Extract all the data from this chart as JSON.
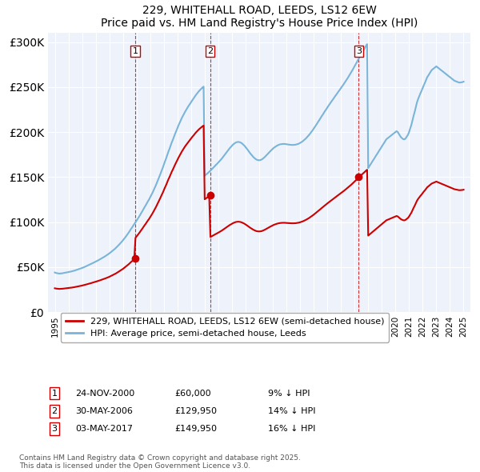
{
  "title": "229, WHITEHALL ROAD, LEEDS, LS12 6EW",
  "subtitle": "Price paid vs. HM Land Registry's House Price Index (HPI)",
  "legend_label_red": "229, WHITEHALL ROAD, LEEDS, LS12 6EW (semi-detached house)",
  "legend_label_blue": "HPI: Average price, semi-detached house, Leeds",
  "footer": "Contains HM Land Registry data © Crown copyright and database right 2025.\nThis data is licensed under the Open Government Licence v3.0.",
  "transactions": [
    {
      "num": 1,
      "date": "24-NOV-2000",
      "price": 60000,
      "hpi_diff": "9% ↓ HPI"
    },
    {
      "num": 2,
      "date": "30-MAY-2006",
      "price": 129950,
      "hpi_diff": "14% ↓ HPI"
    },
    {
      "num": 3,
      "date": "03-MAY-2017",
      "price": 149950,
      "hpi_diff": "16% ↓ HPI"
    }
  ],
  "transaction_years": [
    2000.9,
    2006.4,
    2017.3
  ],
  "transaction_prices": [
    60000,
    129950,
    149950
  ],
  "ylim": [
    0,
    310000
  ],
  "yticks": [
    0,
    50000,
    100000,
    150000,
    200000,
    250000,
    300000
  ],
  "xlim_start": 1994.5,
  "xlim_end": 2025.5,
  "background_color": "#eef3fb",
  "plot_bg": "#eef3fb",
  "red_color": "#cc0000",
  "blue_color": "#7ab4d8",
  "grid_color": "#ffffff",
  "hpi_data_x": [
    1995.0,
    1995.08,
    1995.17,
    1995.25,
    1995.33,
    1995.42,
    1995.5,
    1995.58,
    1995.67,
    1995.75,
    1995.83,
    1995.92,
    1996.0,
    1996.08,
    1996.17,
    1996.25,
    1996.33,
    1996.42,
    1996.5,
    1996.58,
    1996.67,
    1996.75,
    1996.83,
    1996.92,
    1997.0,
    1997.08,
    1997.17,
    1997.25,
    1997.33,
    1997.42,
    1997.5,
    1997.58,
    1997.67,
    1997.75,
    1997.83,
    1997.92,
    1998.0,
    1998.08,
    1998.17,
    1998.25,
    1998.33,
    1998.42,
    1998.5,
    1998.58,
    1998.67,
    1998.75,
    1998.83,
    1998.92,
    1999.0,
    1999.08,
    1999.17,
    1999.25,
    1999.33,
    1999.42,
    1999.5,
    1999.58,
    1999.67,
    1999.75,
    1999.83,
    1999.92,
    2000.0,
    2000.08,
    2000.17,
    2000.25,
    2000.33,
    2000.42,
    2000.5,
    2000.58,
    2000.67,
    2000.75,
    2000.83,
    2000.92,
    2001.0,
    2001.08,
    2001.17,
    2001.25,
    2001.33,
    2001.42,
    2001.5,
    2001.58,
    2001.67,
    2001.75,
    2001.83,
    2001.92,
    2002.0,
    2002.08,
    2002.17,
    2002.25,
    2002.33,
    2002.42,
    2002.5,
    2002.58,
    2002.67,
    2002.75,
    2002.83,
    2002.92,
    2003.0,
    2003.08,
    2003.17,
    2003.25,
    2003.33,
    2003.42,
    2003.5,
    2003.58,
    2003.67,
    2003.75,
    2003.83,
    2003.92,
    2004.0,
    2004.08,
    2004.17,
    2004.25,
    2004.33,
    2004.42,
    2004.5,
    2004.58,
    2004.67,
    2004.75,
    2004.83,
    2004.92,
    2005.0,
    2005.08,
    2005.17,
    2005.25,
    2005.33,
    2005.42,
    2005.5,
    2005.58,
    2005.67,
    2005.75,
    2005.83,
    2005.92,
    2006.0,
    2006.08,
    2006.17,
    2006.25,
    2006.33,
    2006.42,
    2006.5,
    2006.58,
    2006.67,
    2006.75,
    2006.83,
    2006.92,
    2007.0,
    2007.08,
    2007.17,
    2007.25,
    2007.33,
    2007.42,
    2007.5,
    2007.58,
    2007.67,
    2007.75,
    2007.83,
    2007.92,
    2008.0,
    2008.08,
    2008.17,
    2008.25,
    2008.33,
    2008.42,
    2008.5,
    2008.58,
    2008.67,
    2008.75,
    2008.83,
    2008.92,
    2009.0,
    2009.08,
    2009.17,
    2009.25,
    2009.33,
    2009.42,
    2009.5,
    2009.58,
    2009.67,
    2009.75,
    2009.83,
    2009.92,
    2010.0,
    2010.08,
    2010.17,
    2010.25,
    2010.33,
    2010.42,
    2010.5,
    2010.58,
    2010.67,
    2010.75,
    2010.83,
    2010.92,
    2011.0,
    2011.08,
    2011.17,
    2011.25,
    2011.33,
    2011.42,
    2011.5,
    2011.58,
    2011.67,
    2011.75,
    2011.83,
    2011.92,
    2012.0,
    2012.08,
    2012.17,
    2012.25,
    2012.33,
    2012.42,
    2012.5,
    2012.58,
    2012.67,
    2012.75,
    2012.83,
    2012.92,
    2013.0,
    2013.08,
    2013.17,
    2013.25,
    2013.33,
    2013.42,
    2013.5,
    2013.58,
    2013.67,
    2013.75,
    2013.83,
    2013.92,
    2014.0,
    2014.08,
    2014.17,
    2014.25,
    2014.33,
    2014.42,
    2014.5,
    2014.58,
    2014.67,
    2014.75,
    2014.83,
    2014.92,
    2015.0,
    2015.08,
    2015.17,
    2015.25,
    2015.33,
    2015.42,
    2015.5,
    2015.58,
    2015.67,
    2015.75,
    2015.83,
    2015.92,
    2016.0,
    2016.08,
    2016.17,
    2016.25,
    2016.33,
    2016.42,
    2016.5,
    2016.58,
    2016.67,
    2016.75,
    2016.83,
    2016.92,
    2017.0,
    2017.08,
    2017.17,
    2017.25,
    2017.33,
    2017.42,
    2017.5,
    2017.58,
    2017.67,
    2017.75,
    2017.83,
    2017.92,
    2018.0,
    2018.08,
    2018.17,
    2018.25,
    2018.33,
    2018.42,
    2018.5,
    2018.58,
    2018.67,
    2018.75,
    2018.83,
    2018.92,
    2019.0,
    2019.08,
    2019.17,
    2019.25,
    2019.33,
    2019.42,
    2019.5,
    2019.58,
    2019.67,
    2019.75,
    2019.83,
    2019.92,
    2020.0,
    2020.08,
    2020.17,
    2020.25,
    2020.33,
    2020.42,
    2020.5,
    2020.58,
    2020.67,
    2020.75,
    2020.83,
    2020.92,
    2021.0,
    2021.08,
    2021.17,
    2021.25,
    2021.33,
    2021.42,
    2021.5,
    2021.58,
    2021.67,
    2021.75,
    2021.83,
    2021.92,
    2022.0,
    2022.08,
    2022.17,
    2022.25,
    2022.33,
    2022.42,
    2022.5,
    2022.58,
    2022.67,
    2022.75,
    2022.83,
    2022.92,
    2023.0,
    2023.08,
    2023.17,
    2023.25,
    2023.33,
    2023.42,
    2023.5,
    2023.58,
    2023.67,
    2023.75,
    2023.83,
    2023.92,
    2024.0,
    2024.08,
    2024.17,
    2024.25,
    2024.33,
    2024.42,
    2024.5,
    2024.58,
    2024.67,
    2024.75,
    2024.83,
    2024.92,
    2025.0
  ],
  "hpi_data_y": [
    44000,
    43500,
    43200,
    43000,
    42800,
    42900,
    43000,
    43200,
    43500,
    43800,
    44000,
    44200,
    44500,
    44800,
    45000,
    45300,
    45600,
    46000,
    46400,
    46800,
    47200,
    47600,
    48000,
    48400,
    49000,
    49500,
    50000,
    50600,
    51200,
    51800,
    52400,
    53000,
    53600,
    54200,
    54800,
    55400,
    56000,
    56700,
    57400,
    58100,
    58800,
    59500,
    60200,
    61000,
    61800,
    62600,
    63400,
    64200,
    65200,
    66200,
    67200,
    68200,
    69300,
    70400,
    71600,
    72900,
    74200,
    75500,
    76900,
    78300,
    79800,
    81400,
    83000,
    84700,
    86500,
    88300,
    90200,
    92100,
    94000,
    95900,
    97800,
    99700,
    101600,
    103500,
    105500,
    107600,
    109800,
    112000,
    114200,
    116400,
    118600,
    120800,
    123000,
    125200,
    127500,
    130000,
    132600,
    135300,
    138100,
    141000,
    144000,
    147100,
    150300,
    153500,
    156800,
    160200,
    163700,
    167200,
    170800,
    174400,
    178000,
    181500,
    185000,
    188400,
    191700,
    195000,
    198200,
    201400,
    204500,
    207500,
    210400,
    213200,
    215900,
    218400,
    220800,
    223100,
    225300,
    227400,
    229400,
    231300,
    233200,
    235100,
    237000,
    238900,
    240700,
    242400,
    244000,
    245500,
    246900,
    248200,
    249400,
    250500,
    151500,
    152500,
    153600,
    154700,
    155900,
    157100,
    158400,
    159700,
    161000,
    162300,
    163600,
    164900,
    166200,
    167500,
    168900,
    170400,
    172000,
    173700,
    175400,
    177100,
    178800,
    180400,
    182000,
    183500,
    184900,
    186100,
    187200,
    188100,
    188700,
    189000,
    189000,
    188700,
    188100,
    187200,
    186100,
    184800,
    183300,
    181700,
    180000,
    178300,
    176600,
    175000,
    173500,
    172100,
    170900,
    169900,
    169200,
    168800,
    168700,
    168900,
    169400,
    170200,
    171200,
    172400,
    173700,
    175000,
    176400,
    177700,
    179000,
    180300,
    181500,
    182600,
    183500,
    184400,
    185100,
    185700,
    186200,
    186500,
    186700,
    186800,
    186800,
    186700,
    186500,
    186300,
    186100,
    185900,
    185800,
    185700,
    185700,
    185800,
    186000,
    186300,
    186700,
    187200,
    187900,
    188600,
    189500,
    190500,
    191600,
    192800,
    194100,
    195500,
    197000,
    198600,
    200300,
    202000,
    203800,
    205700,
    207600,
    209500,
    211500,
    213500,
    215500,
    217500,
    219500,
    221500,
    223400,
    225300,
    227200,
    229100,
    231000,
    232800,
    234600,
    236400,
    238200,
    240000,
    241800,
    243600,
    245300,
    247100,
    248900,
    250700,
    252500,
    254300,
    256200,
    258100,
    260100,
    262100,
    264200,
    266300,
    268500,
    270800,
    273100,
    275400,
    277700,
    280000,
    282300,
    284500,
    286700,
    288900,
    291100,
    293300,
    295500,
    297700,
    160000,
    162000,
    164000,
    166000,
    168000,
    170000,
    172000,
    174000,
    176000,
    178000,
    180000,
    182000,
    184000,
    186000,
    188000,
    190000,
    192000,
    193000,
    194000,
    195000,
    196000,
    197000,
    198000,
    199000,
    200000,
    201000,
    200000,
    198000,
    196000,
    194000,
    193000,
    192000,
    192000,
    193000,
    195000,
    197000,
    200000,
    204000,
    208000,
    213000,
    218000,
    223000,
    228000,
    233000,
    237000,
    240000,
    243000,
    246000,
    249000,
    252000,
    255000,
    258000,
    261000,
    263000,
    265000,
    267000,
    269000,
    270000,
    271000,
    272000,
    273000,
    272000,
    271000,
    270000,
    269000,
    268000,
    267000,
    266000,
    265000,
    264000,
    263000,
    262000,
    261000,
    260000,
    259000,
    258000,
    257000,
    256500,
    256000,
    255500,
    255000,
    255000,
    255200,
    255500,
    256000
  ]
}
